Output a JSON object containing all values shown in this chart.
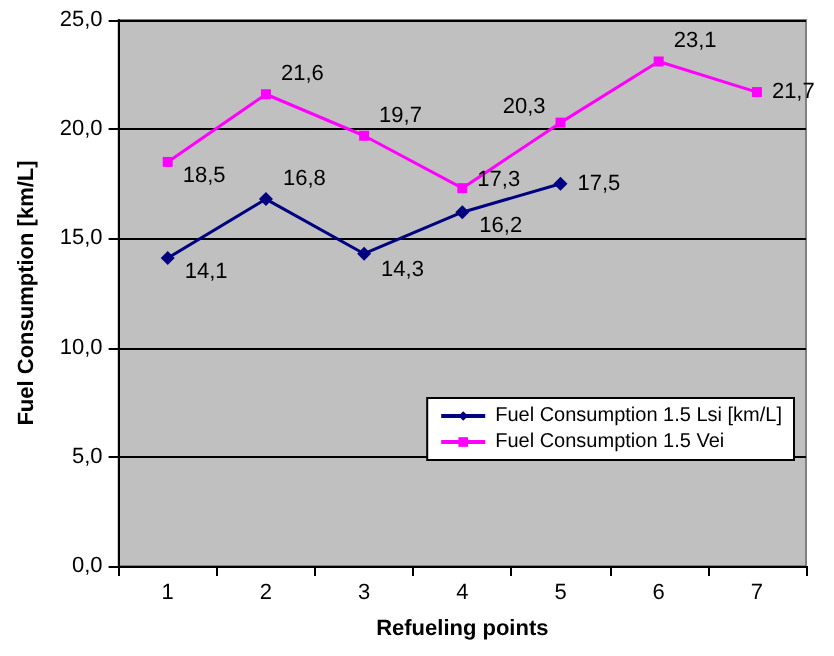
{
  "chart_data": {
    "type": "line",
    "xlabel": "Refueling points",
    "ylabel": "Fuel Consumption [km/L]",
    "categories": [
      "1",
      "2",
      "3",
      "4",
      "5",
      "6",
      "7"
    ],
    "series": [
      {
        "name": "Fuel Consumption 1.5 Lsi [km/L]",
        "color": "#000080",
        "marker": "diamond",
        "values": [
          14.1,
          16.8,
          14.3,
          16.2,
          17.5,
          null,
          null
        ],
        "value_labels": [
          "14,1",
          "16,8",
          "14,3",
          "16,2",
          "17,5",
          null,
          null
        ]
      },
      {
        "name": "Fuel Consumption 1.5 Vei",
        "color": "#ff00ff",
        "marker": "square",
        "values": [
          18.5,
          21.6,
          19.7,
          17.3,
          20.3,
          23.1,
          21.7
        ],
        "value_labels": [
          "18,5",
          "21,6",
          "19,7",
          "17,3",
          "20,3",
          "23,1",
          "21,7"
        ]
      }
    ],
    "ylim": [
      0,
      25
    ],
    "yticks": [
      {
        "value": 0,
        "label": "0,0"
      },
      {
        "value": 5,
        "label": "5,0"
      },
      {
        "value": 10,
        "label": "10,0"
      },
      {
        "value": 15,
        "label": "15,0"
      },
      {
        "value": 20,
        "label": "20,0"
      },
      {
        "value": 25,
        "label": "25,0"
      }
    ],
    "grid": "y",
    "legend": "bottom right"
  }
}
